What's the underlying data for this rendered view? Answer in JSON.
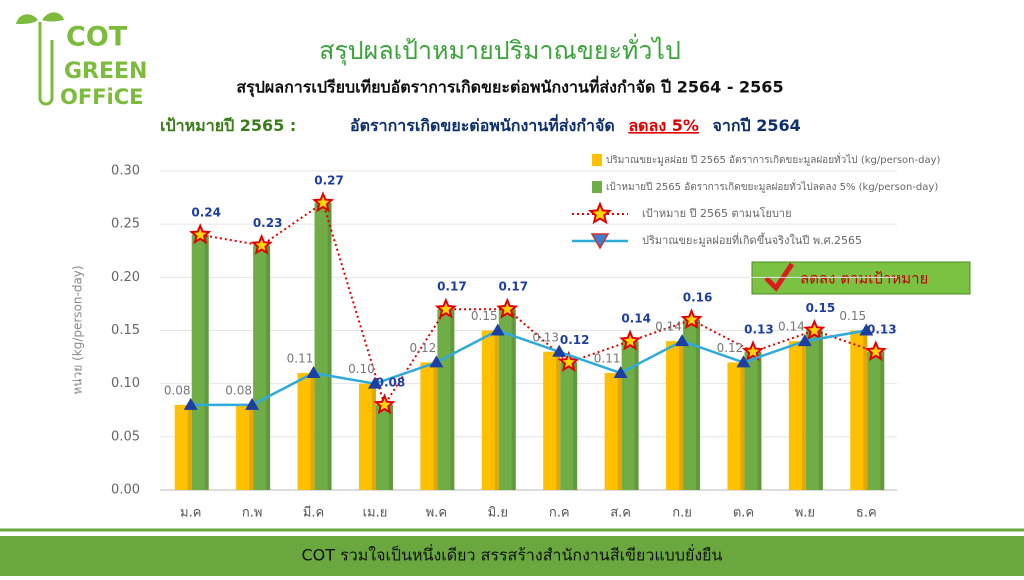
{
  "logo": {
    "line1": "COT",
    "line2": "GREEN",
    "line3": "OFFiCE"
  },
  "footer": "COT รวมใจเป็นหนึ่งเดียว สรรสร้างสำนักงานสีเขียวแบบยั่งยืน",
  "target": {
    "label": "เป้าหมายปี 2565 :",
    "text": "อัตราการเกิดขยะต่อพนักงานที่ส่งกำจัด",
    "highlight": "ลดลง 5%",
    "tail": "จากปี 2564"
  },
  "badge": "ลดลง ตามเป้าหมาย",
  "chart_data": {
    "type": "bar",
    "title": "สรุปผลเป้าหมายปริมาณขยะทั่วไป",
    "subtitle": "สรุปผลการเปรียบเทียบอัตราการเกิดขยะต่อพนักงานที่ส่งกำจัด ปี 2564 - 2565",
    "y_label": "หน่วย (kg/person-day)",
    "categories": [
      "ม.ค",
      "ก.พ",
      "มี.ค",
      "เม.ย",
      "พ.ค",
      "มิ.ย",
      "ก.ค",
      "ส.ค",
      "ก.ย",
      "ต.ค",
      "พ.ย",
      "ธ.ค"
    ],
    "ylim": [
      0,
      0.3
    ],
    "yticks": [
      {
        "value": 0,
        "label": "0.00"
      },
      {
        "value": 0.05,
        "label": "0.05"
      },
      {
        "value": 0.1,
        "label": "0.10"
      },
      {
        "value": 0.15,
        "label": "0.15"
      },
      {
        "value": 0.2,
        "label": "0.20"
      },
      {
        "value": 0.25,
        "label": "0.25"
      },
      {
        "value": 0.3,
        "label": "0.30"
      }
    ],
    "series": [
      {
        "name": "ปริมาณขยะมูลฝอย ปี 2565 อัตราการเกิดขยะมูลฝอยทั่วไป (kg/person-day)",
        "type": "bar",
        "color": "#ffc000",
        "values": [
          0.08,
          0.08,
          0.11,
          0.1,
          0.12,
          0.15,
          0.13,
          0.11,
          0.14,
          0.12,
          0.14,
          0.15
        ],
        "value_labels": [
          "0.08",
          "0.08",
          "0.11",
          "0.10",
          "0.12",
          "0.15",
          "0.13",
          "0.11",
          "0.14",
          "0.12",
          "0.14",
          "0.15"
        ]
      },
      {
        "name": "เป้าหมายปี 2565 อัตราการเกิดขยะมูลฝอยทั่วไปลดลง 5% (kg/person-day)",
        "type": "bar",
        "color": "#70ad47",
        "values": [
          0.24,
          0.23,
          0.27,
          0.08,
          0.17,
          0.17,
          0.12,
          0.14,
          0.16,
          0.13,
          0.15,
          0.13
        ],
        "value_labels": [
          "0.24",
          "0.23",
          "0.27",
          "0.08",
          "0.17",
          "0.17",
          "0.12",
          "0.14",
          "0.16",
          "0.13",
          "0.15",
          "0.13"
        ]
      },
      {
        "name": "เป้าหมาย ปี 2565 ตามนโยบาย",
        "type": "line",
        "color": "#e00000",
        "values": [
          0.24,
          0.23,
          0.27,
          0.08,
          0.17,
          0.17,
          0.12,
          0.14,
          0.16,
          0.13,
          0.15,
          0.13
        ]
      },
      {
        "name": "ปริมาณขยะมูลฝอยที่เกิดขึ้นจริงในปี พ.ศ.2565",
        "type": "line",
        "color": "#2eaadc",
        "values": [
          0.08,
          0.08,
          0.11,
          0.1,
          0.12,
          0.15,
          0.13,
          0.11,
          0.14,
          0.12,
          0.14,
          0.15
        ]
      }
    ]
  }
}
